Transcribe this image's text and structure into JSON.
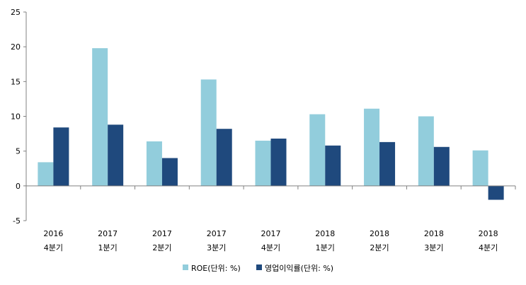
{
  "chart_data": {
    "type": "bar",
    "categories": [
      {
        "year": "2016",
        "quarter": "4분기"
      },
      {
        "year": "2017",
        "quarter": "1분기"
      },
      {
        "year": "2017",
        "quarter": "2분기"
      },
      {
        "year": "2017",
        "quarter": "3분기"
      },
      {
        "year": "2017",
        "quarter": "4분기"
      },
      {
        "year": "2018",
        "quarter": "1분기"
      },
      {
        "year": "2018",
        "quarter": "2분기"
      },
      {
        "year": "2018",
        "quarter": "3분기"
      },
      {
        "year": "2018",
        "quarter": "4분기"
      }
    ],
    "series": [
      {
        "name": "ROE(단위: %)",
        "color": "#92CDDC",
        "values": [
          3.4,
          19.8,
          6.4,
          15.3,
          6.5,
          10.3,
          11.1,
          10.0,
          5.1
        ]
      },
      {
        "name": "영업이익률(단위: %)",
        "color": "#1F497D",
        "values": [
          8.4,
          8.8,
          4.0,
          8.2,
          6.8,
          5.8,
          6.3,
          5.6,
          -2.0
        ]
      }
    ],
    "yticks": [
      "25",
      "20",
      "15",
      "10",
      "5",
      "0",
      "-5"
    ],
    "ylim": [
      -5,
      25
    ],
    "grid": false,
    "legend_position": "bottom"
  }
}
